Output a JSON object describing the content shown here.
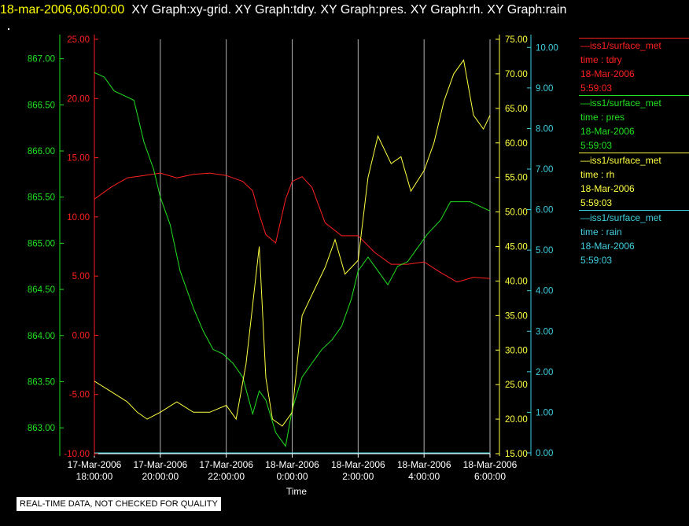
{
  "header": {
    "timestamp": "18-mar-2006,06:00:00",
    "titles": "XY Graph:xy-grid.  XY Graph:tdry.  XY Graph:pres.  XY Graph:rh.  XY Graph:rain"
  },
  "disclaimer": "REAL-TIME DATA, NOT CHECKED FOR QUALITY",
  "legend": [
    {
      "source": "—iss1/surface_met",
      "label": "time : tdry",
      "date": "18-Mar-2006",
      "time": "5:59:03",
      "color": "#ff2020"
    },
    {
      "source": "—iss1/surface_met",
      "label": "time : pres",
      "date": "18-Mar-2006",
      "time": "5:59:03",
      "color": "#20e020"
    },
    {
      "source": "—iss1/surface_met",
      "label": "time : rh",
      "date": "18-Mar-2006",
      "time": "5:59:03",
      "color": "#ffff40"
    },
    {
      "source": "—iss1/surface_met",
      "label": "time : rain",
      "date": "18-Mar-2006",
      "time": "5:59:03",
      "color": "#40d0e0"
    }
  ],
  "chart_data": {
    "type": "line",
    "xlabel": "Time",
    "x_ticks": [
      {
        "date": "17-Mar-2006",
        "time": "18:00:00"
      },
      {
        "date": "17-Mar-2006",
        "time": "20:00:00"
      },
      {
        "date": "17-Mar-2006",
        "time": "22:00:00"
      },
      {
        "date": "18-Mar-2006",
        "time": "0:00:00"
      },
      {
        "date": "18-Mar-2006",
        "time": "2:00:00"
      },
      {
        "date": "18-Mar-2006",
        "time": "4:00:00"
      },
      {
        "date": "18-Mar-2006",
        "time": "6:00:00"
      }
    ],
    "x_range_hours": [
      0,
      12
    ],
    "grid": "vertical",
    "axes": {
      "pres": {
        "color": "#20e020",
        "ticks": [
          "867.00",
          "866.50",
          "866.00",
          "865.50",
          "865.00",
          "864.50",
          "864.00",
          "863.50",
          "863.00"
        ],
        "range": [
          862.72,
          867.21
        ]
      },
      "tdry": {
        "color": "#ff2020",
        "ticks": [
          "25.00",
          "20.00",
          "15.00",
          "10.00",
          "5.00",
          "0.00",
          "-5.00",
          "-10.00"
        ],
        "range": [
          -10,
          25
        ]
      },
      "rh": {
        "color": "#ffff40",
        "ticks": [
          "75.00",
          "70.00",
          "65.00",
          "60.00",
          "55.00",
          "50.00",
          "45.00",
          "40.00",
          "35.00",
          "30.00",
          "25.00",
          "20.00",
          "15.00"
        ],
        "range": [
          15,
          75
        ]
      },
      "rain": {
        "color": "#40d0e0",
        "ticks": [
          "10.00",
          "9.00",
          "8.00",
          "7.00",
          "6.00",
          "5.00",
          "4.00",
          "3.00",
          "2.00",
          "1.00",
          "0.00"
        ],
        "range": [
          -0.02,
          10.2
        ]
      }
    },
    "series": [
      {
        "name": "tdry",
        "axis": "tdry",
        "color": "#ff2020",
        "x": [
          0,
          0.5,
          1,
          1.5,
          2,
          2.5,
          3,
          3.5,
          4,
          4.5,
          4.8,
          5,
          5.2,
          5.5,
          5.8,
          6,
          6.3,
          6.6,
          7,
          7.5,
          8,
          8.5,
          9,
          9.5,
          10,
          10.5,
          11,
          11.5,
          12
        ],
        "y": [
          11.5,
          12.5,
          13.3,
          13.5,
          13.7,
          13.3,
          13.6,
          13.7,
          13.5,
          13.0,
          12.2,
          10.2,
          8.5,
          7.8,
          11.5,
          13.0,
          13.4,
          12.5,
          9.5,
          8.4,
          8.4,
          7.0,
          6.0,
          6.0,
          6.2,
          5.3,
          4.5,
          4.9,
          4.8
        ]
      },
      {
        "name": "pres",
        "axis": "pres",
        "color": "#20e020",
        "x": [
          0,
          0.3,
          0.6,
          0.9,
          1.2,
          1.5,
          1.8,
          2,
          2.3,
          2.6,
          3,
          3.3,
          3.6,
          3.9,
          4.2,
          4.5,
          4.8,
          5,
          5.2,
          5.5,
          5.8,
          6,
          6.3,
          6.6,
          6.9,
          7.2,
          7.5,
          7.8,
          8,
          8.3,
          8.6,
          8.9,
          9.2,
          9.5,
          9.8,
          10.1,
          10.5,
          10.8,
          11.1,
          11.4,
          11.7,
          12
        ],
        "y": [
          866.85,
          866.8,
          866.65,
          866.6,
          866.55,
          866.1,
          865.8,
          865.5,
          865.2,
          864.7,
          864.3,
          864.05,
          863.85,
          863.8,
          863.7,
          863.55,
          863.15,
          863.4,
          863.3,
          862.95,
          862.8,
          863.2,
          863.55,
          863.7,
          863.85,
          863.95,
          864.1,
          864.4,
          864.7,
          864.85,
          864.7,
          864.55,
          864.75,
          864.8,
          864.95,
          865.1,
          865.25,
          865.45,
          865.45,
          865.45,
          865.4,
          865.35
        ]
      },
      {
        "name": "rh",
        "axis": "rh",
        "color": "#ffff40",
        "x": [
          0,
          0.5,
          1,
          1.3,
          1.6,
          2,
          2.5,
          3,
          3.5,
          4,
          4.3,
          4.6,
          5,
          5.2,
          5.4,
          5.7,
          6,
          6.3,
          6.6,
          7,
          7.3,
          7.6,
          8,
          8.3,
          8.6,
          9,
          9.3,
          9.6,
          10,
          10.3,
          10.6,
          10.9,
          11.2,
          11.5,
          11.8,
          12
        ],
        "y": [
          25.5,
          24,
          22.5,
          21,
          20,
          21,
          22.5,
          21,
          21,
          22,
          20,
          28,
          45,
          26,
          20,
          19,
          21,
          35,
          38,
          42,
          46,
          41,
          43,
          55,
          61,
          57,
          58,
          53,
          56,
          60,
          66,
          70,
          72,
          64,
          62,
          64
        ]
      },
      {
        "name": "rain",
        "axis": "rain",
        "color": "#40d0e0",
        "x": [
          0,
          12
        ],
        "y": [
          0,
          0
        ]
      }
    ]
  }
}
